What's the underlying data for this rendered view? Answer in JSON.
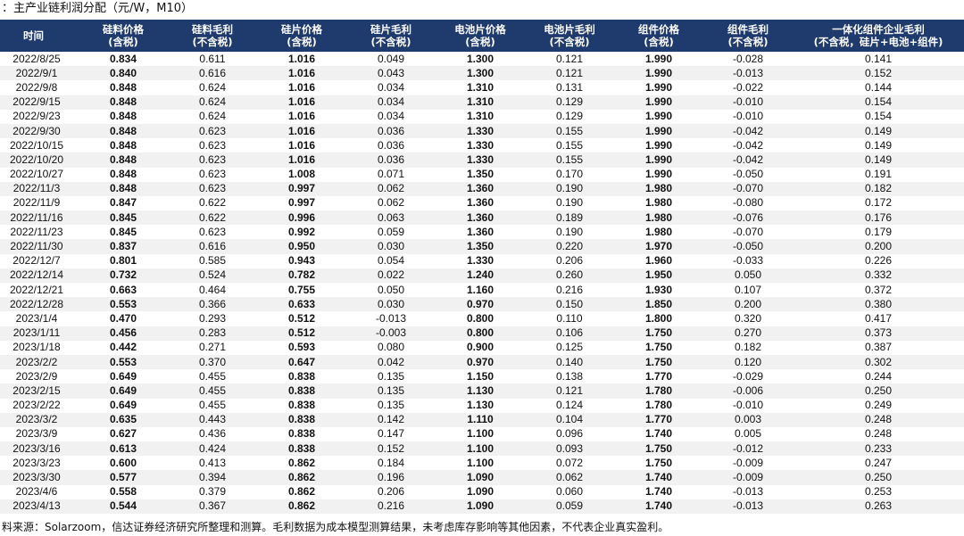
{
  "title": "：主产业链利润分配（元/W，M10）",
  "headers": [
    {
      "l1": "时间",
      "l2": ""
    },
    {
      "l1": "硅料价格",
      "l2": "(含税)"
    },
    {
      "l1": "硅料毛利",
      "l2": "(不含税)"
    },
    {
      "l1": "硅片价格",
      "l2": "(含税)"
    },
    {
      "l1": "硅片毛利",
      "l2": "(不含税)"
    },
    {
      "l1": "电池片价格",
      "l2": "(含税)"
    },
    {
      "l1": "电池片毛利",
      "l2": "(不含税)"
    },
    {
      "l1": "组件价格",
      "l2": "(含税)"
    },
    {
      "l1": "组件毛利",
      "l2": "(不含税)"
    },
    {
      "l1": "一体化组件企业毛利",
      "l2": "(不含税，硅片+电池+组件)"
    }
  ],
  "rows": [
    [
      "2022/8/25",
      "0.834",
      "0.611",
      "1.016",
      "0.049",
      "1.300",
      "0.121",
      "1.990",
      "-0.028",
      "0.141"
    ],
    [
      "2022/9/1",
      "0.840",
      "0.616",
      "1.016",
      "0.043",
      "1.300",
      "0.121",
      "1.990",
      "-0.013",
      "0.152"
    ],
    [
      "2022/9/8",
      "0.848",
      "0.624",
      "1.016",
      "0.034",
      "1.310",
      "0.131",
      "1.990",
      "-0.022",
      "0.144"
    ],
    [
      "2022/9/15",
      "0.848",
      "0.624",
      "1.016",
      "0.034",
      "1.310",
      "0.129",
      "1.990",
      "-0.010",
      "0.154"
    ],
    [
      "2022/9/23",
      "0.848",
      "0.624",
      "1.016",
      "0.034",
      "1.310",
      "0.129",
      "1.990",
      "-0.010",
      "0.154"
    ],
    [
      "2022/9/30",
      "0.848",
      "0.623",
      "1.016",
      "0.036",
      "1.330",
      "0.155",
      "1.990",
      "-0.042",
      "0.149"
    ],
    [
      "2022/10/15",
      "0.848",
      "0.623",
      "1.016",
      "0.036",
      "1.330",
      "0.155",
      "1.990",
      "-0.042",
      "0.149"
    ],
    [
      "2022/10/20",
      "0.848",
      "0.623",
      "1.016",
      "0.036",
      "1.330",
      "0.155",
      "1.990",
      "-0.042",
      "0.149"
    ],
    [
      "2022/10/27",
      "0.848",
      "0.623",
      "1.008",
      "0.071",
      "1.350",
      "0.170",
      "1.990",
      "-0.050",
      "0.191"
    ],
    [
      "2022/11/3",
      "0.848",
      "0.623",
      "0.997",
      "0.062",
      "1.360",
      "0.190",
      "1.980",
      "-0.070",
      "0.182"
    ],
    [
      "2022/11/9",
      "0.847",
      "0.622",
      "0.997",
      "0.062",
      "1.360",
      "0.190",
      "1.980",
      "-0.080",
      "0.172"
    ],
    [
      "2022/11/16",
      "0.845",
      "0.622",
      "0.996",
      "0.063",
      "1.360",
      "0.189",
      "1.980",
      "-0.076",
      "0.176"
    ],
    [
      "2022/11/23",
      "0.845",
      "0.623",
      "0.992",
      "0.059",
      "1.360",
      "0.190",
      "1.980",
      "-0.070",
      "0.179"
    ],
    [
      "2022/11/30",
      "0.837",
      "0.616",
      "0.950",
      "0.030",
      "1.350",
      "0.220",
      "1.970",
      "-0.050",
      "0.200"
    ],
    [
      "2022/12/7",
      "0.801",
      "0.585",
      "0.943",
      "0.054",
      "1.330",
      "0.206",
      "1.960",
      "-0.033",
      "0.226"
    ],
    [
      "2022/12/14",
      "0.732",
      "0.524",
      "0.782",
      "0.022",
      "1.240",
      "0.260",
      "1.950",
      "0.050",
      "0.332"
    ],
    [
      "2022/12/21",
      "0.663",
      "0.464",
      "0.755",
      "0.050",
      "1.160",
      "0.216",
      "1.930",
      "0.107",
      "0.372"
    ],
    [
      "2022/12/28",
      "0.553",
      "0.366",
      "0.633",
      "0.030",
      "0.970",
      "0.150",
      "1.850",
      "0.200",
      "0.380"
    ],
    [
      "2023/1/4",
      "0.470",
      "0.293",
      "0.512",
      "-0.013",
      "0.800",
      "0.110",
      "1.800",
      "0.320",
      "0.417"
    ],
    [
      "2023/1/11",
      "0.456",
      "0.283",
      "0.512",
      "-0.003",
      "0.800",
      "0.106",
      "1.750",
      "0.270",
      "0.373"
    ],
    [
      "2023/1/18",
      "0.442",
      "0.271",
      "0.593",
      "0.080",
      "0.900",
      "0.125",
      "1.750",
      "0.182",
      "0.387"
    ],
    [
      "2023/2/2",
      "0.553",
      "0.370",
      "0.647",
      "0.042",
      "0.970",
      "0.140",
      "1.750",
      "0.120",
      "0.302"
    ],
    [
      "2023/2/9",
      "0.649",
      "0.455",
      "0.838",
      "0.135",
      "1.150",
      "0.138",
      "1.770",
      "-0.029",
      "0.244"
    ],
    [
      "2023/2/15",
      "0.649",
      "0.455",
      "0.838",
      "0.135",
      "1.130",
      "0.121",
      "1.780",
      "-0.006",
      "0.250"
    ],
    [
      "2023/2/22",
      "0.649",
      "0.455",
      "0.838",
      "0.135",
      "1.130",
      "0.124",
      "1.780",
      "-0.010",
      "0.249"
    ],
    [
      "2023/3/2",
      "0.635",
      "0.443",
      "0.838",
      "0.142",
      "1.110",
      "0.104",
      "1.770",
      "0.003",
      "0.248"
    ],
    [
      "2023/3/9",
      "0.627",
      "0.436",
      "0.838",
      "0.147",
      "1.100",
      "0.096",
      "1.740",
      "0.005",
      "0.248"
    ],
    [
      "2023/3/16",
      "0.613",
      "0.424",
      "0.838",
      "0.152",
      "1.100",
      "0.093",
      "1.750",
      "-0.012",
      "0.233"
    ],
    [
      "2023/3/23",
      "0.600",
      "0.413",
      "0.862",
      "0.184",
      "1.100",
      "0.072",
      "1.750",
      "-0.009",
      "0.247"
    ],
    [
      "2023/3/30",
      "0.577",
      "0.394",
      "0.862",
      "0.196",
      "1.090",
      "0.062",
      "1.740",
      "-0.009",
      "0.250"
    ],
    [
      "2023/4/6",
      "0.558",
      "0.379",
      "0.862",
      "0.206",
      "1.090",
      "0.060",
      "1.740",
      "-0.013",
      "0.253"
    ],
    [
      "2023/4/13",
      "0.544",
      "0.367",
      "0.862",
      "0.216",
      "1.090",
      "0.059",
      "1.740",
      "-0.013",
      "0.263"
    ]
  ],
  "bold_columns": [
    1,
    3,
    5,
    7
  ],
  "footer": "料来源：Solarzoom，信达证券经济研究所整理和测算。毛利数据为成本模型测算结果，未考虑库存影响等其他因素，不代表企业真实盈利。"
}
